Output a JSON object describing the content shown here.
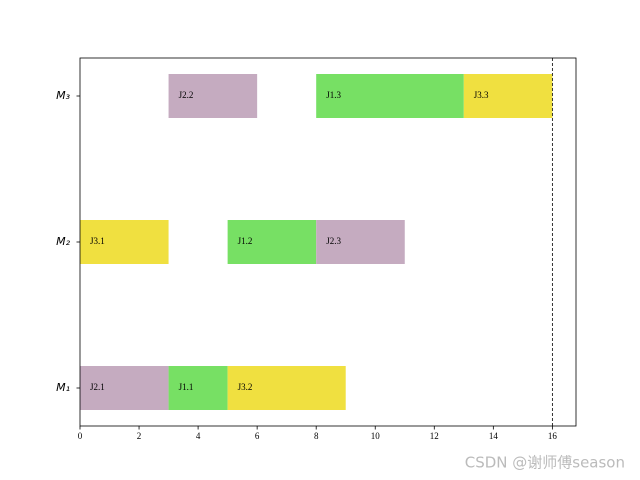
{
  "chart_data": {
    "type": "gantt",
    "machines": [
      "M₁",
      "M₂",
      "M₃"
    ],
    "xlim": [
      0,
      16.8
    ],
    "xticks": [
      0,
      2,
      4,
      6,
      8,
      10,
      12,
      14,
      16
    ],
    "makespan": 16,
    "tasks": [
      {
        "machine": 0,
        "label": "J2.1",
        "start": 0,
        "end": 3,
        "color": "#c5abc0"
      },
      {
        "machine": 0,
        "label": "J1.1",
        "start": 3,
        "end": 5,
        "color": "#77e064"
      },
      {
        "machine": 0,
        "label": "J3.2",
        "start": 5,
        "end": 9,
        "color": "#f0e040"
      },
      {
        "machine": 1,
        "label": "J3.1",
        "start": 0,
        "end": 3,
        "color": "#f0e040"
      },
      {
        "machine": 1,
        "label": "J1.2",
        "start": 5,
        "end": 8,
        "color": "#77e064"
      },
      {
        "machine": 1,
        "label": "J2.3",
        "start": 8,
        "end": 11,
        "color": "#c5abc0"
      },
      {
        "machine": 2,
        "label": "J2.2",
        "start": 3,
        "end": 6,
        "color": "#c5abc0"
      },
      {
        "machine": 2,
        "label": "J1.3",
        "start": 8,
        "end": 13,
        "color": "#77e064"
      },
      {
        "machine": 2,
        "label": "J3.3",
        "start": 13,
        "end": 16,
        "color": "#f0e040"
      }
    ],
    "watermark": "CSDN @谢师傅season"
  }
}
